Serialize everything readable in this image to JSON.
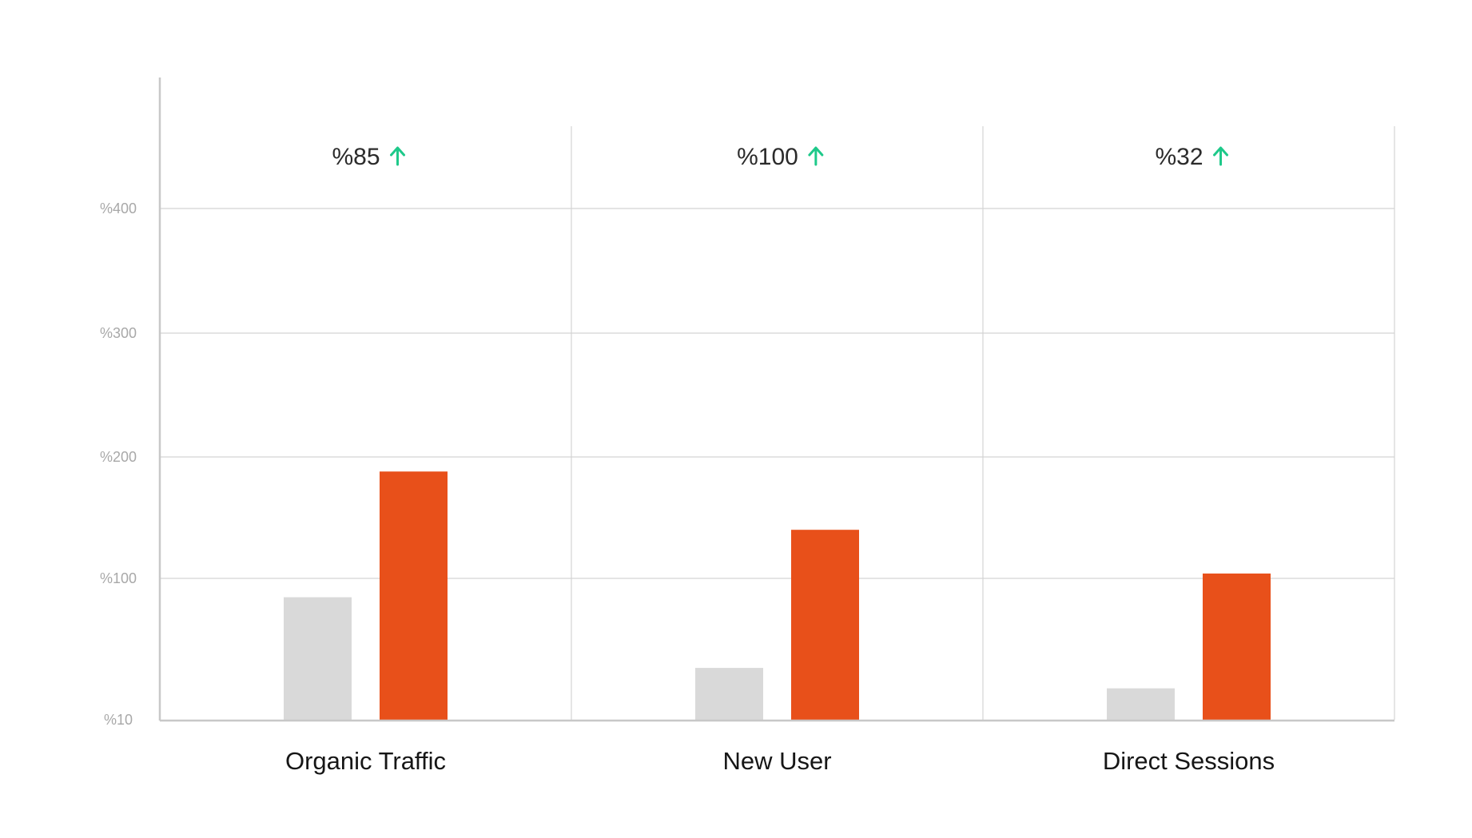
{
  "chart_data": {
    "type": "bar",
    "categories": [
      "Organic Traffic",
      "New User",
      "Direct Sessions"
    ],
    "series": [
      {
        "values": [
          88,
          43,
          30
        ]
      },
      {
        "values": [
          188,
          140,
          104
        ]
      }
    ],
    "growth": [
      {
        "label": "%85",
        "icon": "arrow-up-icon"
      },
      {
        "label": "%100",
        "icon": "arrow-up-icon"
      },
      {
        "label": "%32",
        "icon": "arrow-up-icon"
      }
    ],
    "y_ticks": [
      {
        "value": 10,
        "label": "%10"
      },
      {
        "value": 100,
        "label": "%100"
      },
      {
        "value": 200,
        "label": "%200"
      },
      {
        "value": 300,
        "label": "%300"
      },
      {
        "value": 400,
        "label": "%400"
      }
    ],
    "ylim": [
      10,
      400
    ],
    "grid": true,
    "colors": {
      "series": [
        "#d9d9d9",
        "#e8501a"
      ],
      "arrow": "#1ec98a",
      "grid": "#d4d4d4",
      "axis": "#c8c8c8"
    }
  }
}
